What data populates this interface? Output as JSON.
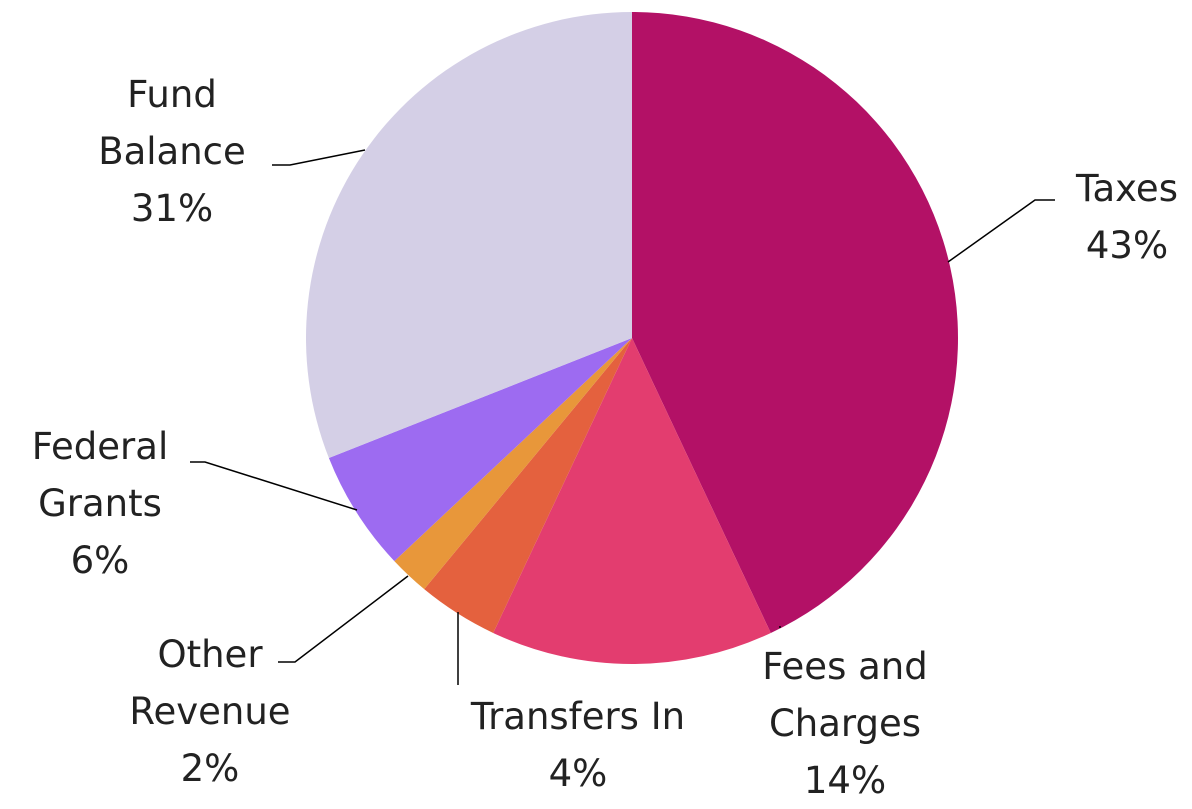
{
  "chart_data": {
    "type": "pie",
    "categories": [
      "Taxes",
      "Fees and Charges",
      "Transfers In",
      "Other Revenue",
      "Federal Grants",
      "Fund Balance"
    ],
    "values": [
      43,
      14,
      4,
      2,
      6,
      31
    ],
    "value_labels": [
      "43%",
      "14%",
      "4%",
      "2%",
      "6%",
      "31%"
    ],
    "colors": [
      "#b31166",
      "#e33d6f",
      "#e4613e",
      "#e8973a",
      "#9d6bf1",
      "#d4cfe6"
    ]
  }
}
